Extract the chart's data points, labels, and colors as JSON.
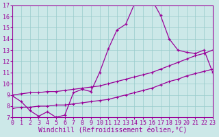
{
  "xlabel": "Windchill (Refroidissement éolien,°C)",
  "bg_color": "#cce8e8",
  "line_color": "#990099",
  "grid_color": "#99cccc",
  "xmin": 0,
  "xmax": 23,
  "ymin": 7,
  "ymax": 17,
  "line1_x": [
    0,
    1,
    2,
    3,
    4,
    5,
    6,
    7,
    8,
    9,
    10,
    11,
    12,
    13,
    14,
    15,
    16,
    17,
    18,
    19,
    20,
    21,
    22,
    23
  ],
  "line1_y": [
    8.9,
    8.4,
    7.6,
    7.1,
    7.5,
    7.0,
    7.2,
    9.2,
    9.5,
    9.3,
    11.0,
    13.1,
    14.8,
    15.3,
    17.1,
    17.2,
    17.5,
    16.1,
    14.0,
    13.0,
    12.8,
    12.7,
    13.0,
    11.0
  ],
  "line2_x": [
    0,
    1,
    2,
    3,
    4,
    5,
    6,
    7,
    8,
    9,
    10,
    11,
    12,
    13,
    14,
    15,
    16,
    17,
    18,
    19,
    20,
    21,
    22,
    23
  ],
  "line2_y": [
    9.0,
    9.1,
    9.2,
    9.2,
    9.3,
    9.3,
    9.4,
    9.5,
    9.6,
    9.7,
    9.8,
    10.0,
    10.2,
    10.4,
    10.6,
    10.8,
    11.0,
    11.3,
    11.6,
    11.9,
    12.2,
    12.5,
    12.7,
    13.0
  ],
  "line3_x": [
    0,
    1,
    2,
    3,
    4,
    5,
    6,
    7,
    8,
    9,
    10,
    11,
    12,
    13,
    14,
    15,
    16,
    17,
    18,
    19,
    20,
    21,
    22,
    23
  ],
  "line3_y": [
    7.8,
    7.9,
    7.9,
    8.0,
    8.0,
    8.1,
    8.1,
    8.2,
    8.3,
    8.4,
    8.5,
    8.6,
    8.8,
    9.0,
    9.2,
    9.4,
    9.6,
    9.9,
    10.2,
    10.4,
    10.7,
    10.9,
    11.1,
    11.3
  ],
  "tick_fontsize": 6.0,
  "label_fontsize": 7.0
}
